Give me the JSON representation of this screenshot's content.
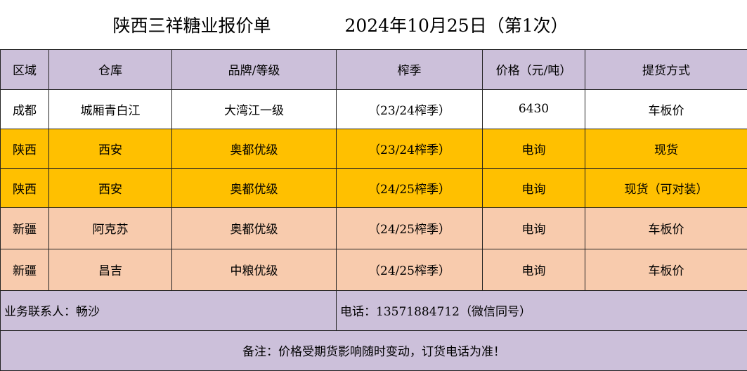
{
  "header": {
    "title": "陕西三祥糖业报价单",
    "date": "2024年10月25日（第1次）"
  },
  "table": {
    "columns": [
      "区域",
      "仓库",
      "品牌/等级",
      "榨季",
      "价格（元/吨）",
      "提货方式"
    ],
    "rows": [
      [
        "成都",
        "城厢青白江",
        "大湾江一级",
        "（23/24榨季）",
        "6430",
        "车板价"
      ],
      [
        "陕西",
        "西安",
        "奥都优级",
        "（23/24榨季）",
        "电询",
        "现货"
      ],
      [
        "陕西",
        "西安",
        "奥都优级",
        "（24/25榨季）",
        "电询",
        "现货（可对装）"
      ],
      [
        "新疆",
        "阿克苏",
        "奥都优级",
        "（24/25榨季）",
        "电询",
        "车板价"
      ],
      [
        "新疆",
        "昌吉",
        "中粮优级",
        "（24/25榨季）",
        "电询",
        "车板价"
      ]
    ]
  },
  "footer": {
    "contact": "业务联系人：畅沙",
    "phone": "电话：13571884712（微信同号）",
    "note": "备注：价格受期货影响随时变动，订货电话为准！"
  }
}
